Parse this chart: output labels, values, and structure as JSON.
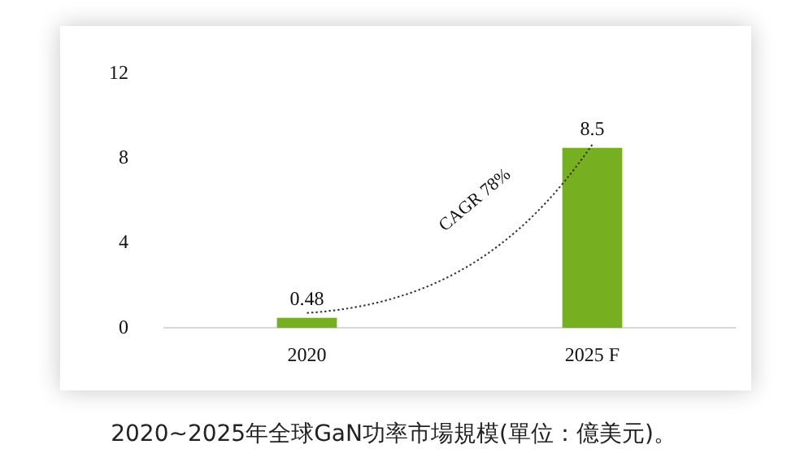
{
  "chart_data": {
    "type": "bar",
    "title": "2020~2025年全球GaN功率市場規模(單位：億美元)。",
    "categories": [
      "2020",
      "2025 F"
    ],
    "values": [
      0.48,
      8.5
    ],
    "color": "#76b021",
    "ylim": [
      0,
      12
    ],
    "yticks": [
      0,
      4,
      8,
      12
    ],
    "grid": false,
    "data_labels": true,
    "annotations": [
      "CAGR 78%"
    ]
  }
}
